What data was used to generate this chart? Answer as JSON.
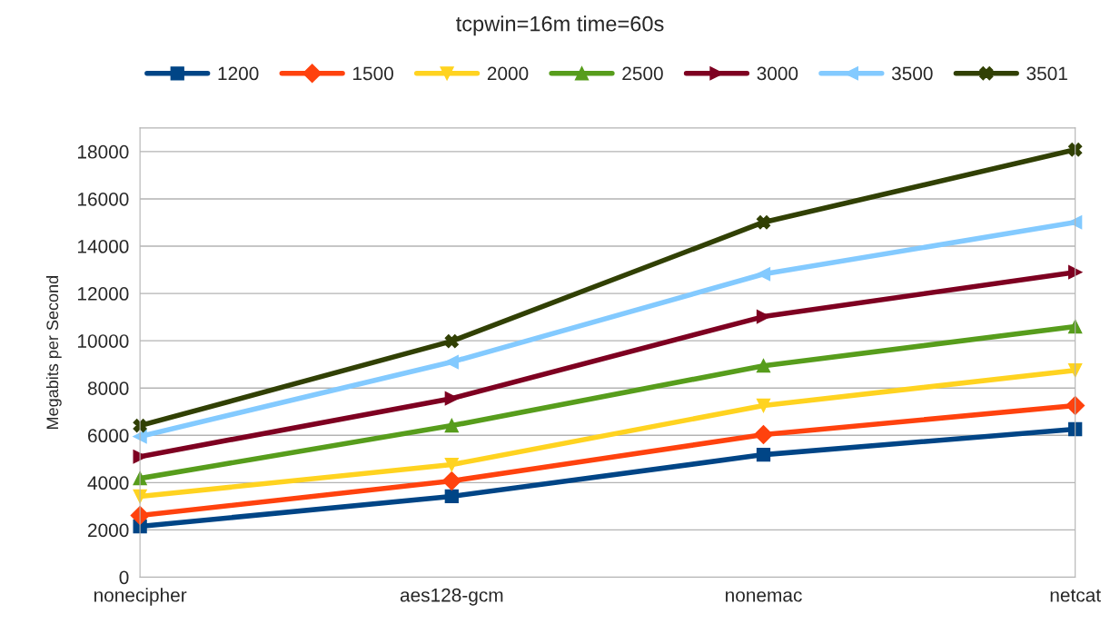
{
  "chart_data": {
    "type": "line",
    "title": "tcpwin=16m time=60s",
    "ylabel": "Megabits per Second",
    "categories": [
      "nonecipher",
      "aes128-gcm",
      "nonemac",
      "netcat"
    ],
    "series": [
      {
        "name": "1200",
        "color": "#004586",
        "marker": "square",
        "values": [
          2150,
          3420,
          5180,
          6260
        ]
      },
      {
        "name": "1500",
        "color": "#ff420e",
        "marker": "diamond",
        "values": [
          2610,
          4070,
          6030,
          7260
        ]
      },
      {
        "name": "2000",
        "color": "#ffd320",
        "marker": "triangle-down",
        "values": [
          3420,
          4760,
          7260,
          8750
        ]
      },
      {
        "name": "2500",
        "color": "#579d1c",
        "marker": "triangle",
        "values": [
          4180,
          6410,
          8940,
          10600
        ]
      },
      {
        "name": "3000",
        "color": "#7e0021",
        "marker": "triangle-right",
        "values": [
          5100,
          7560,
          11020,
          12900
        ]
      },
      {
        "name": "3500",
        "color": "#83caff",
        "marker": "triangle-left",
        "values": [
          5950,
          9100,
          12820,
          15010
        ]
      },
      {
        "name": "3501",
        "color": "#314004",
        "marker": "cross",
        "values": [
          6410,
          9980,
          15010,
          18080
        ]
      }
    ],
    "ylim": [
      0,
      19000
    ],
    "yticks": [
      0,
      2000,
      4000,
      6000,
      8000,
      10000,
      12000,
      14000,
      16000,
      18000
    ],
    "grid": "y",
    "legend": "top",
    "line_style": "solid"
  }
}
